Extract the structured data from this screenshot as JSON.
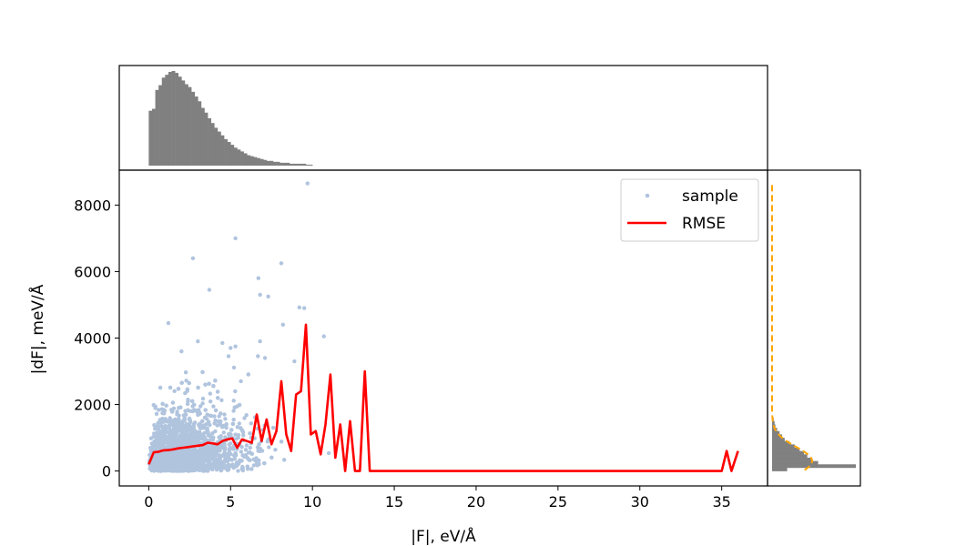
{
  "chart_data": {
    "type": "scatter",
    "xlabel": "|F|, eV/Å",
    "ylabel": "|dF|, meV/Å",
    "xlim": [
      -1.8,
      37.8
    ],
    "ylim": [
      -450,
      9050
    ],
    "x_ticks": [
      0,
      5,
      10,
      15,
      20,
      25,
      30,
      35
    ],
    "y_ticks": [
      0,
      2000,
      4000,
      6000,
      8000
    ],
    "legend": {
      "placement": "top-right",
      "entries": [
        "sample",
        "RMSE"
      ]
    },
    "colors": {
      "sample": "#b0c4de",
      "rmse": "#ff0000",
      "histogram": "#808080",
      "fit": "#ffa500"
    },
    "series": [
      {
        "name": "RMSE",
        "kind": "line",
        "x": [
          0.0,
          0.3,
          0.6,
          0.9,
          1.2,
          1.5,
          1.8,
          2.1,
          2.4,
          2.7,
          3.0,
          3.3,
          3.6,
          3.9,
          4.2,
          4.5,
          4.8,
          5.1,
          5.4,
          5.7,
          6.0,
          6.3,
          6.6,
          6.9,
          7.2,
          7.5,
          7.8,
          8.1,
          8.4,
          8.7,
          9.0,
          9.3,
          9.6,
          9.9,
          10.2,
          10.5,
          10.8,
          11.1,
          11.4,
          11.7,
          12.0,
          12.3,
          12.6,
          12.9,
          13.2,
          13.5,
          14.0,
          35.0,
          35.3,
          35.6,
          36.0
        ],
        "y": [
          200,
          560,
          580,
          620,
          630,
          650,
          680,
          700,
          720,
          740,
          760,
          780,
          850,
          830,
          800,
          900,
          950,
          980,
          700,
          950,
          900,
          850,
          1700,
          900,
          1550,
          800,
          1200,
          2700,
          1100,
          600,
          2300,
          2400,
          4400,
          1100,
          1200,
          500,
          1400,
          2900,
          400,
          1400,
          0,
          1500,
          0,
          0,
          3000,
          0,
          0,
          0,
          600,
          0,
          600
        ]
      },
      {
        "name": "sample",
        "kind": "scatter",
        "points": [
          [
            9.7,
            8650
          ],
          [
            5.3,
            7000
          ],
          [
            2.7,
            6400
          ],
          [
            8.1,
            6250
          ],
          [
            3.7,
            5450
          ],
          [
            6.7,
            5800
          ],
          [
            6.8,
            5300
          ],
          [
            9.2,
            4920
          ],
          [
            9.5,
            4900
          ],
          [
            7.3,
            5250
          ],
          [
            1.2,
            4450
          ],
          [
            10.7,
            4050
          ],
          [
            8.2,
            4400
          ],
          [
            6.8,
            3900
          ],
          [
            4.5,
            3850
          ],
          [
            7.1,
            3400
          ],
          [
            8.9,
            3300
          ],
          [
            5.0,
            3700
          ],
          [
            3.0,
            3900
          ],
          [
            2.0,
            3600
          ]
        ]
      }
    ],
    "histograms": {
      "x_marginal": {
        "bin_width": 0.2,
        "start": 0.0,
        "counts": [
          0.58,
          0.6,
          0.8,
          0.85,
          0.93,
          0.96,
          0.99,
          1.0,
          0.98,
          0.94,
          0.9,
          0.86,
          0.83,
          0.78,
          0.73,
          0.68,
          0.61,
          0.56,
          0.5,
          0.45,
          0.4,
          0.36,
          0.32,
          0.28,
          0.25,
          0.22,
          0.19,
          0.17,
          0.15,
          0.13,
          0.11,
          0.1,
          0.09,
          0.08,
          0.07,
          0.06,
          0.05,
          0.05,
          0.04,
          0.04,
          0.03,
          0.03,
          0.03,
          0.02,
          0.02,
          0.02,
          0.02,
          0.02,
          0.01,
          0.01
        ]
      },
      "y_marginal": {
        "bin_edges": [
          0,
          100,
          200,
          300,
          400,
          500,
          600,
          700,
          800,
          900,
          1000,
          1100,
          1200,
          1300,
          1400,
          1500,
          1600
        ],
        "counts": [
          0.18,
          1.0,
          0.55,
          0.47,
          0.42,
          0.38,
          0.33,
          0.27,
          0.21,
          0.15,
          0.12,
          0.09,
          0.06,
          0.04,
          0.03,
          0.02
        ]
      }
    }
  }
}
